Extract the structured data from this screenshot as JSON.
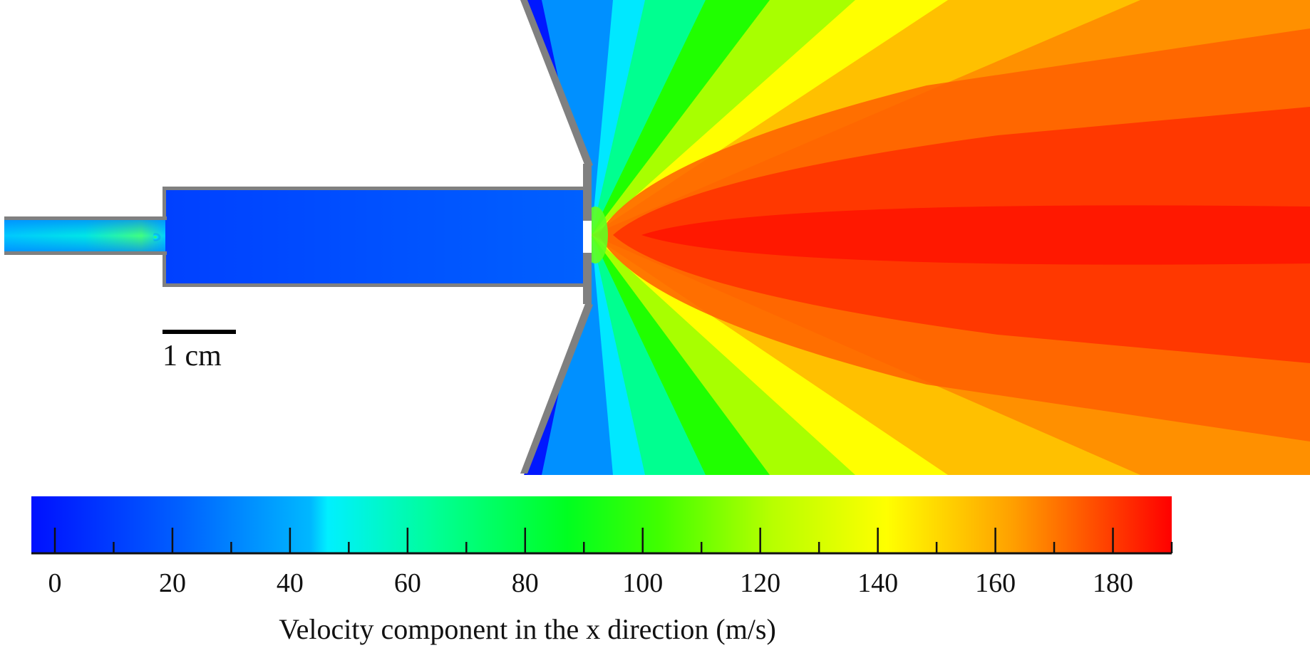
{
  "figure": {
    "scale_bar_label": "1 cm",
    "colorbar": {
      "title": "Velocity component in the x direction (m/s)",
      "min": -4,
      "max": 190,
      "major_ticks": [
        0,
        20,
        40,
        60,
        80,
        100,
        120,
        140,
        160,
        180
      ],
      "minor_ticks": [
        10,
        30,
        50,
        70,
        90,
        110,
        130,
        150,
        170,
        190
      ],
      "major_tick_labels": [
        "0",
        "20",
        "40",
        "60",
        "80",
        "100",
        "120",
        "140",
        "160",
        "180"
      ],
      "colormap": "jet",
      "colors": {
        "low": "#0010ff",
        "cyan": "#00ffff",
        "green": "#00ff00",
        "yellow": "#ffff00",
        "high": "#ff0000"
      }
    },
    "wall_color": "#808080",
    "regions": {
      "inlet_tube": {
        "velocity_range": [
          0,
          80
        ]
      },
      "chamber": {
        "velocity_range": [
          0,
          15
        ]
      },
      "nozzle_exit": {
        "velocity_range": [
          0,
          190
        ]
      }
    }
  }
}
